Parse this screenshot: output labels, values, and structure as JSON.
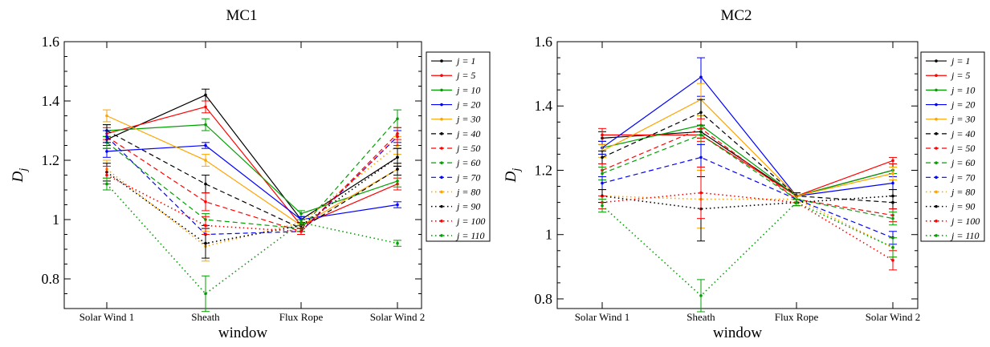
{
  "chart_data": [
    {
      "type": "line",
      "title": "MC1",
      "xlabel": "window",
      "ylabel": "D_j",
      "ylim": [
        0.7,
        1.6
      ],
      "yticks": [
        "0.8",
        "1",
        "1.2",
        "1.4",
        "1.6"
      ],
      "yticks_values": [
        0.8,
        1.0,
        1.2,
        1.4,
        1.6
      ],
      "categories": [
        "Solar Wind 1",
        "Sheath",
        "Flux Rope",
        "Solar Wind 2"
      ],
      "legend_position": "top-right",
      "series": [
        {
          "name": "j = 1",
          "color": "#000000",
          "dash": "solid",
          "values": [
            1.27,
            1.42,
            1.0,
            1.21
          ],
          "errors": [
            0.03,
            0.02,
            0.01,
            0.03
          ]
        },
        {
          "name": "j = 5",
          "color": "#ff0000",
          "dash": "solid",
          "values": [
            1.29,
            1.38,
            0.98,
            1.12
          ],
          "errors": [
            0.02,
            0.02,
            0.01,
            0.02
          ]
        },
        {
          "name": "j = 10",
          "color": "#00a000",
          "dash": "solid",
          "values": [
            1.3,
            1.32,
            1.02,
            1.13
          ],
          "errors": [
            0.02,
            0.02,
            0.01,
            0.02
          ]
        },
        {
          "name": "j = 20",
          "color": "#0000ff",
          "dash": "solid",
          "values": [
            1.23,
            1.25,
            1.0,
            1.05
          ],
          "errors": [
            0.02,
            0.01,
            0.01,
            0.01
          ]
        },
        {
          "name": "j = 30",
          "color": "#ffa500",
          "dash": "solid",
          "values": [
            1.35,
            1.2,
            0.98,
            1.17
          ],
          "errors": [
            0.02,
            0.02,
            0.01,
            0.02
          ]
        },
        {
          "name": "j = 40",
          "color": "#000000",
          "dash": "dash",
          "values": [
            1.3,
            1.12,
            0.97,
            1.17
          ],
          "errors": [
            0.02,
            0.03,
            0.01,
            0.02
          ]
        },
        {
          "name": "j = 50",
          "color": "#ff0000",
          "dash": "dash",
          "values": [
            1.28,
            1.06,
            0.96,
            1.29
          ],
          "errors": [
            0.02,
            0.03,
            0.01,
            0.02
          ]
        },
        {
          "name": "j = 60",
          "color": "#00a000",
          "dash": "dash",
          "values": [
            1.26,
            1.0,
            0.97,
            1.34
          ],
          "errors": [
            0.02,
            0.02,
            0.01,
            0.03
          ]
        },
        {
          "name": "j = 70",
          "color": "#0000ff",
          "dash": "dash",
          "values": [
            1.28,
            0.95,
            0.96,
            1.28
          ],
          "errors": [
            0.02,
            0.03,
            0.01,
            0.02
          ]
        },
        {
          "name": "j = 80",
          "color": "#ffa500",
          "dash": "dot",
          "values": [
            1.17,
            0.91,
            0.99,
            1.25
          ],
          "errors": [
            0.03,
            0.05,
            0.01,
            0.03
          ]
        },
        {
          "name": "j = 90",
          "color": "#000000",
          "dash": "dot",
          "values": [
            1.16,
            0.92,
            0.98,
            1.21
          ],
          "errors": [
            0.03,
            0.05,
            0.01,
            0.03
          ]
        },
        {
          "name": "j = 100",
          "color": "#ff0000",
          "dash": "dot",
          "values": [
            1.15,
            0.98,
            0.96,
            1.28
          ],
          "errors": [
            0.03,
            0.03,
            0.01,
            0.03
          ]
        },
        {
          "name": "j = 110",
          "color": "#00a000",
          "dash": "dot",
          "values": [
            1.12,
            0.75,
            0.99,
            0.92
          ],
          "errors": [
            0.02,
            0.06,
            0.01,
            0.01
          ]
        }
      ]
    },
    {
      "type": "line",
      "title": "MC2",
      "xlabel": "window",
      "ylabel": "D_j",
      "ylim": [
        0.77,
        1.6
      ],
      "yticks": [
        "0.8",
        "1",
        "1.2",
        "1.4",
        "1.6"
      ],
      "yticks_values": [
        0.8,
        1.0,
        1.2,
        1.4,
        1.6
      ],
      "categories": [
        "Solar Wind 1",
        "Sheath",
        "Flux Rope",
        "Solar Wind 2"
      ],
      "legend_position": "top-right",
      "series": [
        {
          "name": "j = 1",
          "color": "#000000",
          "dash": "solid",
          "values": [
            1.3,
            1.32,
            1.12,
            1.2
          ],
          "errors": [
            0.02,
            0.02,
            0.01,
            0.02
          ]
        },
        {
          "name": "j = 5",
          "color": "#ff0000",
          "dash": "solid",
          "values": [
            1.31,
            1.31,
            1.12,
            1.23
          ],
          "errors": [
            0.02,
            0.02,
            0.01,
            0.01
          ]
        },
        {
          "name": "j = 10",
          "color": "#00a000",
          "dash": "solid",
          "values": [
            1.27,
            1.34,
            1.12,
            1.2
          ],
          "errors": [
            0.02,
            0.03,
            0.01,
            0.01
          ]
        },
        {
          "name": "j = 20",
          "color": "#0000ff",
          "dash": "solid",
          "values": [
            1.27,
            1.49,
            1.12,
            1.16
          ],
          "errors": [
            0.02,
            0.06,
            0.01,
            0.02
          ]
        },
        {
          "name": "j = 30",
          "color": "#ffa500",
          "dash": "solid",
          "values": [
            1.26,
            1.42,
            1.12,
            1.19
          ],
          "errors": [
            0.02,
            0.05,
            0.01,
            0.02
          ]
        },
        {
          "name": "j = 40",
          "color": "#000000",
          "dash": "dash",
          "values": [
            1.24,
            1.38,
            1.12,
            1.1
          ],
          "errors": [
            0.02,
            0.04,
            0.01,
            0.02
          ]
        },
        {
          "name": "j = 50",
          "color": "#ff0000",
          "dash": "dash",
          "values": [
            1.2,
            1.33,
            1.11,
            1.06
          ],
          "errors": [
            0.02,
            0.03,
            0.01,
            0.02
          ]
        },
        {
          "name": "j = 60",
          "color": "#00a000",
          "dash": "dash",
          "values": [
            1.19,
            1.31,
            1.11,
            1.05
          ],
          "errors": [
            0.02,
            0.03,
            0.01,
            0.02
          ]
        },
        {
          "name": "j = 70",
          "color": "#0000ff",
          "dash": "dash",
          "values": [
            1.16,
            1.24,
            1.11,
            0.99
          ],
          "errors": [
            0.02,
            0.04,
            0.01,
            0.02
          ]
        },
        {
          "name": "j = 80",
          "color": "#ffa500",
          "dash": "dot",
          "values": [
            1.12,
            1.11,
            1.11,
            0.96
          ],
          "errors": [
            0.02,
            0.09,
            0.01,
            0.03
          ]
        },
        {
          "name": "j = 90",
          "color": "#000000",
          "dash": "dot",
          "values": [
            1.12,
            1.08,
            1.1,
            1.12
          ],
          "errors": [
            0.02,
            0.1,
            0.01,
            0.02
          ]
        },
        {
          "name": "j = 100",
          "color": "#ff0000",
          "dash": "dot",
          "values": [
            1.1,
            1.13,
            1.1,
            0.92
          ],
          "errors": [
            0.02,
            0.08,
            0.01,
            0.03
          ]
        },
        {
          "name": "j = 110",
          "color": "#00a000",
          "dash": "dot",
          "values": [
            1.09,
            0.81,
            1.1,
            0.96
          ],
          "errors": [
            0.02,
            0.05,
            0.01,
            0.03
          ]
        }
      ]
    }
  ]
}
